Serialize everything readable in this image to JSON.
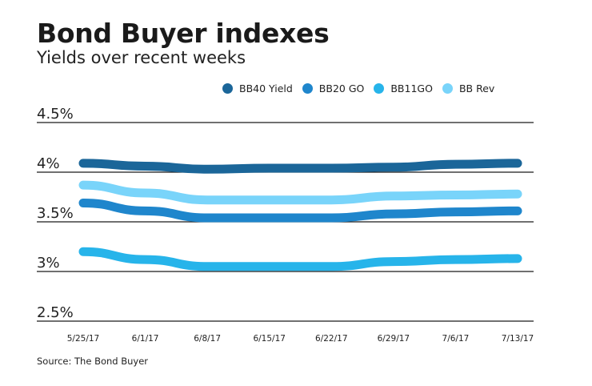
{
  "title": "Bond Buyer indexes",
  "subtitle": "Yields over recent weeks",
  "source": "Source: The Bond Buyer",
  "chart_data": {
    "type": "line",
    "title": "Bond Buyer indexes",
    "subtitle": "Yields over recent weeks",
    "xlabel": "",
    "ylabel": "",
    "categories": [
      "5/25/17",
      "6/1/17",
      "6/8/17",
      "6/15/17",
      "6/22/17",
      "6/29/17",
      "7/6/17",
      "7/13/17"
    ],
    "ylim": [
      2.5,
      4.5
    ],
    "yticks": [
      4.5,
      4,
      3.5,
      3,
      2.5
    ],
    "ytick_labels": [
      "4.5%",
      "4%",
      "3.5%",
      "3%",
      "2.5%"
    ],
    "grid": true,
    "legend_position": "top",
    "series": [
      {
        "name": "BB40 Yield",
        "color": "#1b6699",
        "values": [
          4.09,
          4.06,
          4.03,
          4.04,
          4.04,
          4.05,
          4.08,
          4.09
        ]
      },
      {
        "name": "BB20 GO",
        "color": "#1f86cc",
        "values": [
          3.69,
          3.61,
          3.54,
          3.54,
          3.54,
          3.58,
          3.6,
          3.61
        ]
      },
      {
        "name": "BB11GO",
        "color": "#27b4ea",
        "values": [
          3.2,
          3.12,
          3.05,
          3.05,
          3.05,
          3.1,
          3.12,
          3.13
        ]
      },
      {
        "name": "BB Rev",
        "color": "#79d4fa",
        "values": [
          3.87,
          3.79,
          3.72,
          3.72,
          3.72,
          3.76,
          3.77,
          3.78
        ]
      }
    ]
  }
}
